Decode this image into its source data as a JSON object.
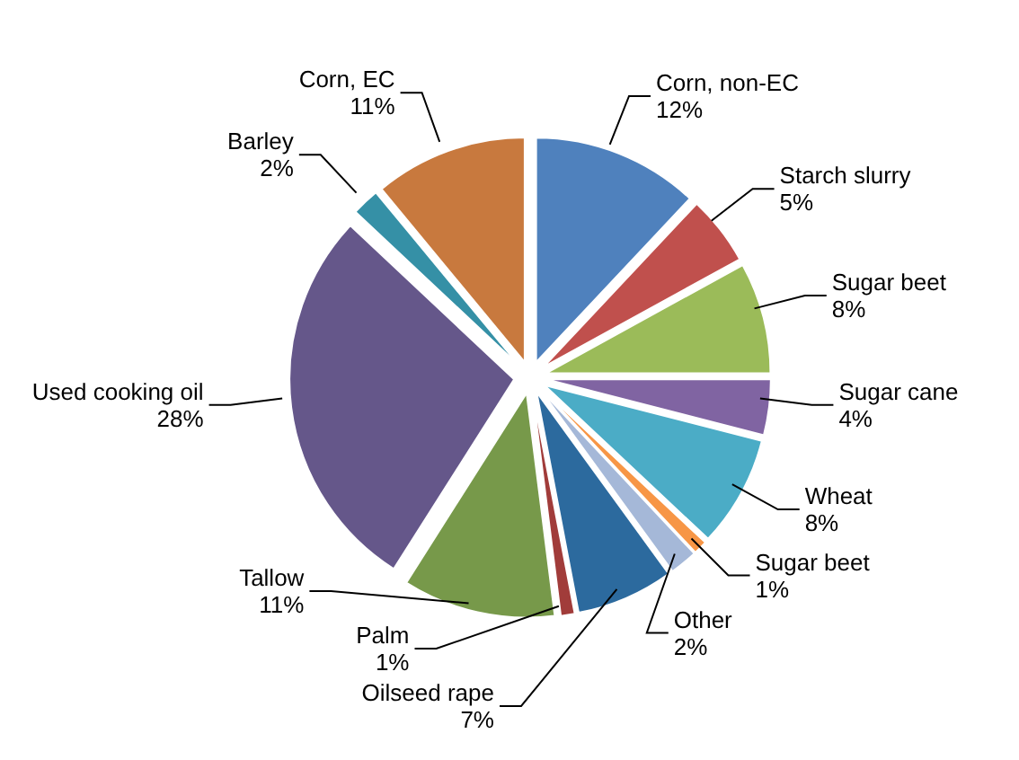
{
  "chart_data": {
    "type": "pie",
    "categories": [
      "Corn, non-EC",
      "Starch slurry",
      "Sugar beet",
      "Sugar cane",
      "Wheat",
      "Sugar beet",
      "Other",
      "Oilseed rape",
      "Palm",
      "Tallow",
      "Used cooking oil",
      "Barley",
      "Corn, EC"
    ],
    "values": [
      12,
      5,
      8,
      4,
      8,
      1,
      2,
      7,
      1,
      11,
      28,
      2,
      11
    ],
    "value_labels": [
      "12%",
      "5%",
      "8%",
      "4%",
      "8%",
      "1%",
      "2%",
      "7%",
      "1%",
      "11%",
      "28%",
      "2%",
      "11%"
    ],
    "colors": [
      "#4f81bd",
      "#c0504d",
      "#9bbb59",
      "#8064a2",
      "#4bacc6",
      "#f79646",
      "#a5b8d8",
      "#2c6a9e",
      "#a13c3a",
      "#77994a",
      "#65578a",
      "#3590a6",
      "#c8793e"
    ],
    "legend": false
  }
}
